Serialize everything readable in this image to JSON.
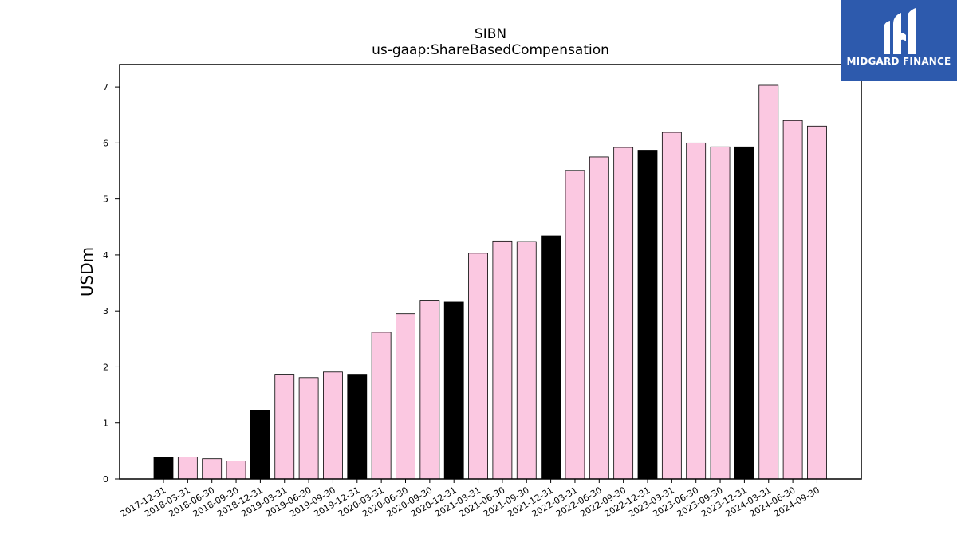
{
  "brand": {
    "name": "MIDGARD FINANCE",
    "logo_icon": "midgard-logo-icon"
  },
  "chart_data": {
    "type": "bar",
    "title": "SIBN",
    "subtitle": "us-gaap:ShareBasedCompensation",
    "xlabel": "",
    "ylabel": "USDm",
    "ylim": [
      0,
      7.4
    ],
    "yticks": [
      0,
      1,
      2,
      3,
      4,
      5,
      6,
      7
    ],
    "grid": false,
    "legend": "none",
    "colors": {
      "annual": "#000000",
      "quarterly": "#fbc8e1",
      "edge": "#000000"
    },
    "categories": [
      "2017-12-31",
      "2018-03-31",
      "2018-06-30",
      "2018-09-30",
      "2018-12-31",
      "2019-03-31",
      "2019-06-30",
      "2019-09-30",
      "2019-12-31",
      "2020-03-31",
      "2020-06-30",
      "2020-09-30",
      "2020-12-31",
      "2021-03-31",
      "2021-06-30",
      "2021-09-30",
      "2021-12-31",
      "2022-03-31",
      "2022-06-30",
      "2022-09-30",
      "2022-12-31",
      "2023-03-31",
      "2023-06-30",
      "2023-09-30",
      "2023-12-31",
      "2024-03-31",
      "2024-06-30",
      "2024-09-30"
    ],
    "values": [
      0.39,
      0.39,
      0.36,
      0.32,
      1.23,
      1.87,
      1.81,
      1.91,
      1.87,
      2.62,
      2.95,
      3.18,
      3.16,
      4.03,
      4.25,
      4.24,
      4.34,
      5.51,
      5.75,
      5.92,
      5.87,
      6.19,
      6.0,
      5.93,
      5.93,
      7.03,
      6.4,
      6.3
    ],
    "period_type": [
      "annual",
      "quarterly",
      "quarterly",
      "quarterly",
      "annual",
      "quarterly",
      "quarterly",
      "quarterly",
      "annual",
      "quarterly",
      "quarterly",
      "quarterly",
      "annual",
      "quarterly",
      "quarterly",
      "quarterly",
      "annual",
      "quarterly",
      "quarterly",
      "quarterly",
      "annual",
      "quarterly",
      "quarterly",
      "quarterly",
      "annual",
      "quarterly",
      "quarterly",
      "quarterly"
    ]
  }
}
